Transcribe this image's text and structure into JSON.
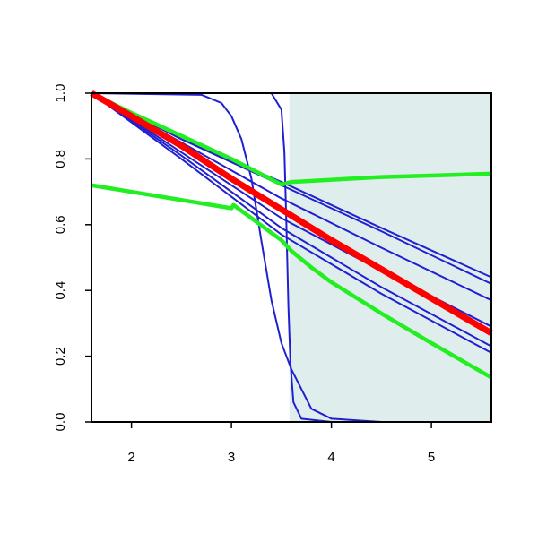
{
  "chart_data": {
    "type": "line",
    "xlim": [
      1.6,
      5.6
    ],
    "ylim": [
      0,
      1
    ],
    "xticks": [
      2,
      3,
      4,
      5
    ],
    "yticks": [
      {
        "value": 0,
        "label": "0.0"
      },
      0.2,
      0.4,
      0.6,
      0.8,
      {
        "value": 1,
        "label": "1.0"
      }
    ],
    "shaded_region": {
      "xlim": [
        3.58,
        5.6
      ],
      "ylim": [
        0,
        1
      ],
      "color": "#e0eded"
    },
    "series": [
      {
        "color": "#2020d0",
        "width": 2,
        "x": [
          1.6,
          2.5,
          3.5,
          4.5,
          5.6
        ],
        "values": [
          1,
          0.86,
          0.73,
          0.59,
          0.44
        ]
      },
      {
        "color": "#2020d0",
        "width": 2,
        "x": [
          1.6,
          2.5,
          3.5,
          4.5,
          5.6
        ],
        "values": [
          1,
          0.86,
          0.72,
          0.58,
          0.42
        ]
      },
      {
        "color": "#2020d0",
        "width": 2,
        "x": [
          1.6,
          2.5,
          3.5,
          4.5,
          5.6
        ],
        "values": [
          1,
          0.85,
          0.68,
          0.53,
          0.37
        ]
      },
      {
        "color": "#2020d0",
        "width": 2,
        "x": [
          1.6,
          2.5,
          3.5,
          4.5,
          5.6
        ],
        "values": [
          1,
          0.82,
          0.62,
          0.46,
          0.29
        ]
      },
      {
        "color": "#2020d0",
        "width": 2,
        "x": [
          1.6,
          2.5,
          3.5,
          4.5,
          5.6
        ],
        "values": [
          1,
          0.81,
          0.59,
          0.41,
          0.23
        ]
      },
      {
        "color": "#2020d0",
        "width": 2,
        "x": [
          1.6,
          2.5,
          3.5,
          4.5,
          5.6
        ],
        "values": [
          1,
          0.8,
          0.57,
          0.39,
          0.21
        ]
      },
      {
        "color": "#2020d0",
        "width": 2,
        "x": [
          1.6,
          3.4,
          3.5,
          3.53,
          3.55,
          3.57,
          3.59,
          3.62,
          3.7,
          4.0,
          5.6
        ],
        "values": [
          1,
          1,
          0.95,
          0.82,
          0.6,
          0.35,
          0.18,
          0.06,
          0.01,
          0,
          0
        ]
      },
      {
        "color": "#2020d0",
        "width": 2,
        "x": [
          1.6,
          2.7,
          2.9,
          3.0,
          3.1,
          3.2,
          3.3,
          3.4,
          3.5,
          3.6,
          3.8,
          4.0,
          4.5,
          5.6
        ],
        "values": [
          1,
          0.995,
          0.97,
          0.93,
          0.86,
          0.74,
          0.55,
          0.37,
          0.24,
          0.16,
          0.04,
          0.01,
          0,
          0
        ]
      },
      {
        "color": "#22ee22",
        "width": 4.5,
        "x": [
          1.6,
          2.0,
          2.5,
          3.0,
          3.5,
          3.6,
          4.5,
          5.6
        ],
        "values": [
          1,
          0.94,
          0.87,
          0.8,
          0.722,
          0.73,
          0.745,
          0.755
        ]
      },
      {
        "color": "#22ee22",
        "width": 4.5,
        "x": [
          1.6,
          3.0,
          3.02,
          3.2,
          3.4,
          3.5,
          3.6,
          3.8,
          4.0,
          4.5,
          5.0,
          5.6
        ],
        "values": [
          0.72,
          0.65,
          0.66,
          0.62,
          0.575,
          0.553,
          0.52,
          0.47,
          0.425,
          0.33,
          0.24,
          0.135
        ]
      },
      {
        "color": "#ff0000",
        "width": 7,
        "x": [
          1.6,
          2.0,
          2.5,
          3.0,
          4.0,
          5.0,
          5.6
        ],
        "values": [
          1,
          0.93,
          0.84,
          0.74,
          0.553,
          0.376,
          0.27
        ]
      }
    ]
  }
}
